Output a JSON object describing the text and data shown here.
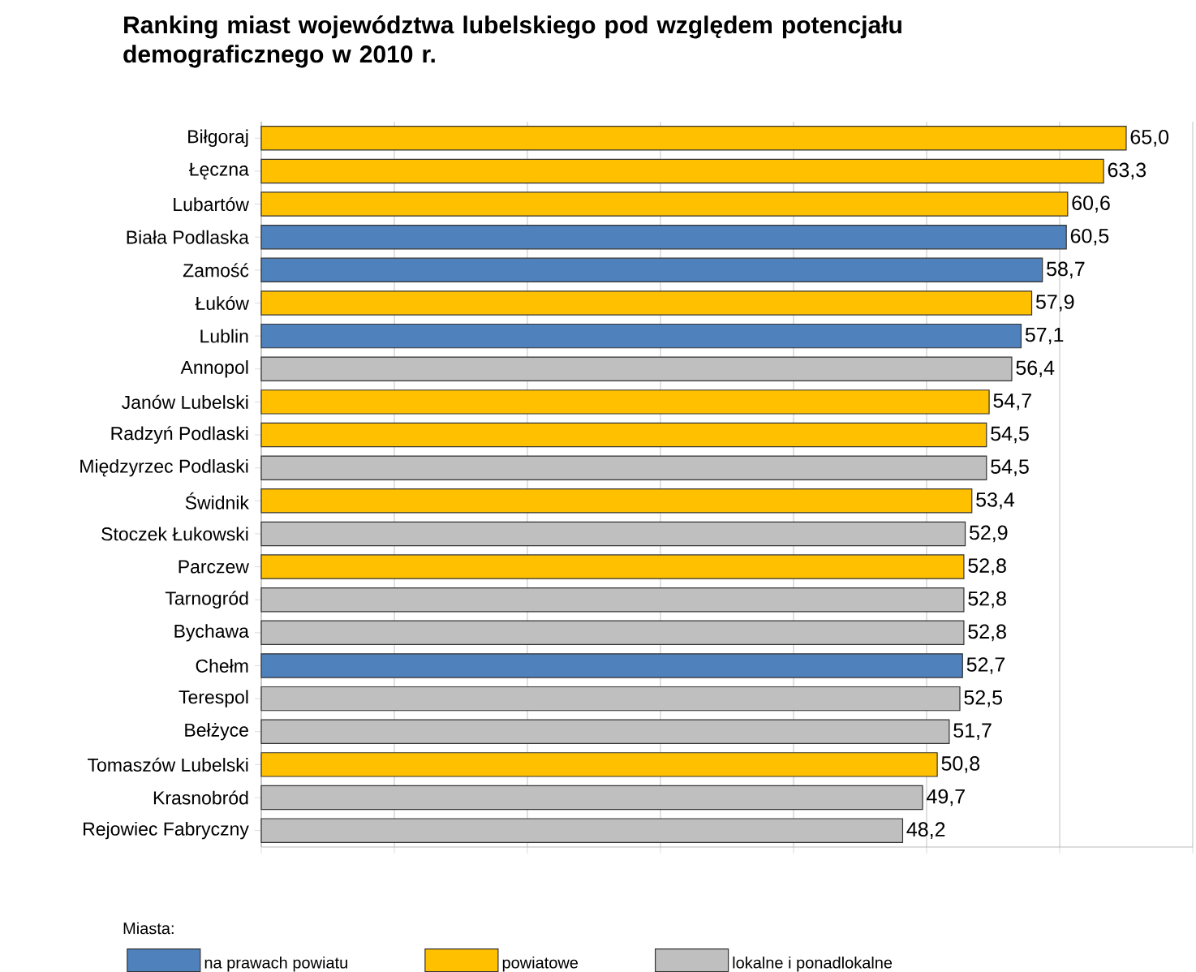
{
  "chart_data": {
    "type": "bar",
    "orientation": "horizontal",
    "title": "Ranking miast województwa lubelskiego pod względem potencjału demograficznego w 2010 r.",
    "categories": [
      "Biłgoraj",
      "Łęczna",
      "Lubartów",
      "Biała Podlaska",
      "Zamość",
      "Łuków",
      "Lublin",
      "Annopol",
      "Janów Lubelski",
      "Radzyń Podlaski",
      "Międzyrzec Podlaski",
      "Świdnik",
      "Stoczek Łukowski",
      "Parczew",
      "Tarnogród",
      "Bychawa",
      "Chełm",
      "Terespol",
      "Bełżyce",
      "Tomaszów Lubelski",
      "Krasnobród",
      "Rejowiec Fabryczny"
    ],
    "series": [
      {
        "name": "na prawach powiatu",
        "color": "#4f81bd",
        "values": [
          null,
          null,
          null,
          60.5,
          58.7,
          null,
          57.1,
          null,
          null,
          null,
          null,
          null,
          null,
          null,
          null,
          null,
          52.7,
          null,
          null,
          null,
          null,
          null
        ],
        "value_labels": [
          null,
          null,
          null,
          "60,5",
          "58,7",
          null,
          "57,1",
          null,
          null,
          null,
          null,
          null,
          null,
          null,
          null,
          null,
          "52,7",
          null,
          null,
          null,
          null,
          null
        ]
      },
      {
        "name": "powiatowe",
        "color": "#ffc000",
        "values": [
          65.0,
          63.3,
          60.6,
          null,
          null,
          57.9,
          null,
          null,
          54.7,
          54.5,
          null,
          53.4,
          null,
          52.8,
          null,
          null,
          null,
          null,
          null,
          50.8,
          null,
          null
        ],
        "value_labels": [
          "65,0",
          "63,3",
          "60,6",
          null,
          null,
          "57,9",
          null,
          null,
          "54,7",
          "54,5",
          null,
          "53,4",
          null,
          "52,8",
          null,
          null,
          null,
          null,
          null,
          "50,8",
          null,
          null
        ]
      },
      {
        "name": "lokalne i ponadlokalne",
        "color": "#bfbfbf",
        "values": [
          null,
          null,
          null,
          null,
          null,
          null,
          null,
          56.4,
          null,
          null,
          54.5,
          null,
          52.9,
          null,
          52.8,
          52.8,
          null,
          52.5,
          51.7,
          null,
          49.7,
          48.2
        ],
        "value_labels": [
          null,
          null,
          null,
          null,
          null,
          null,
          null,
          "56,4",
          null,
          null,
          "54,5",
          null,
          "52,9",
          null,
          "52,8",
          "52,8",
          null,
          "52,5",
          "51,7",
          null,
          "49,7",
          "48,2"
        ]
      }
    ],
    "xlim": [
      0,
      70
    ],
    "xticks": [
      {
        "value": 0,
        "label": null
      },
      {
        "value": 10,
        "label": null
      },
      {
        "value": 20,
        "label": null
      },
      {
        "value": 30,
        "label": null
      },
      {
        "value": 40,
        "label": null
      },
      {
        "value": 50,
        "label": null
      },
      {
        "value": 60,
        "label": null
      },
      {
        "value": 70,
        "label": null
      }
    ],
    "tick_labels": "y",
    "grid": "x",
    "legend": "bottom",
    "legend_title": "Miasta:"
  }
}
